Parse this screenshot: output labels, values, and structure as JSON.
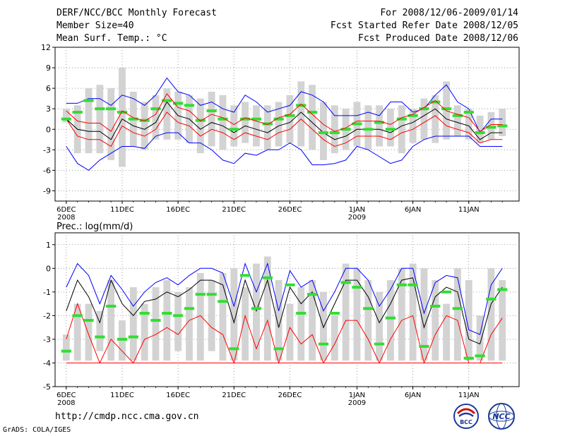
{
  "header": {
    "title": "DERF/NCC/BCC Monthly Forecast",
    "member_size": "Member Size=40",
    "variable": "Mean Surf. Temp.: °C",
    "period": "For 2008/12/06-2009/01/14",
    "started": "Fcst Started Refer Date 2008/12/05",
    "produced": "Fcst Produced Date 2008/12/06"
  },
  "footer": {
    "url": "http://cmdp.ncc.cma.gov.cn",
    "grads": "GrADS: COLA/IGES",
    "logo_bcc_text": "BCC",
    "logo_ncc_text": "NCC"
  },
  "colors": {
    "box": "#d3d3d3",
    "mean": "#000000",
    "upper": "#0000ff",
    "lower": "#ff0000",
    "marker": "#33dd33",
    "grid": "#888888"
  },
  "chart_data": [
    {
      "type": "box-ensemble",
      "title": "Mean Surf. Temp.: °C",
      "ylim": [
        -10.5,
        12
      ],
      "yticks": [
        12,
        9,
        6,
        3,
        0,
        -3,
        -6,
        -9
      ],
      "ytick_labels": [
        "12",
        "9",
        "6",
        "3",
        "0",
        "-3",
        "-6",
        "-9"
      ],
      "xlabels": [
        {
          "day": 0,
          "label": "6DEC",
          "sub": "2008"
        },
        {
          "day": 5,
          "label": "11DEC"
        },
        {
          "day": 10,
          "label": "16DEC"
        },
        {
          "day": 15,
          "label": "21DEC"
        },
        {
          "day": 20,
          "label": "26DEC"
        },
        {
          "day": 26,
          "label": "1JAN",
          "sub": "2009"
        },
        {
          "day": 31,
          "label": "6JAN"
        },
        {
          "day": 36,
          "label": "11JAN"
        }
      ],
      "box_low": [
        1.0,
        -3.5,
        -3.5,
        -3.5,
        -4.5,
        -5.5,
        -2.5,
        -3.0,
        -1.5,
        -1.5,
        -1.5,
        -2.0,
        -3.5,
        -2.5,
        -3.0,
        -2.5,
        -2.0,
        -2.5,
        -3.0,
        -2.5,
        -2.0,
        -2.5,
        -3.0,
        -4.5,
        -3.5,
        -3.0,
        -2.5,
        -3.0,
        -2.5,
        -2.5,
        -3.5,
        -2.0,
        -1.5,
        -2.0,
        -1.5,
        -1.0,
        -1.5,
        -2.0,
        -1.5,
        -1.0
      ],
      "box_high": [
        3.0,
        3.5,
        6.0,
        6.5,
        6.0,
        9.0,
        5.5,
        4.0,
        5.0,
        6.0,
        5.5,
        5.0,
        4.5,
        5.5,
        5.0,
        3.5,
        4.0,
        3.5,
        3.5,
        4.0,
        5.0,
        7.0,
        6.5,
        4.0,
        3.5,
        3.0,
        4.0,
        3.5,
        3.5,
        3.0,
        3.5,
        3.0,
        4.5,
        5.0,
        7.0,
        3.5,
        3.0,
        2.0,
        2.5,
        3.0
      ],
      "marker": [
        1.5,
        2.5,
        4.2,
        3.0,
        3.0,
        2.5,
        1.5,
        1.3,
        3.0,
        4.2,
        3.8,
        3.5,
        1.3,
        2.7,
        1.5,
        0.0,
        1.5,
        1.5,
        0.8,
        1.5,
        2.0,
        3.5,
        2.5,
        -0.5,
        -0.5,
        0.0,
        0.8,
        0.0,
        1.0,
        0.0,
        1.5,
        2.0,
        3.0,
        4.0,
        3.0,
        2.0,
        2.5,
        -0.5,
        0.3,
        0.5
      ],
      "mean": [
        1.5,
        0.0,
        -0.3,
        -0.3,
        -1.5,
        1.5,
        0.5,
        0.0,
        1.0,
        4.0,
        2.0,
        1.5,
        0.0,
        1.0,
        0.5,
        -0.5,
        0.5,
        0.0,
        -0.5,
        0.5,
        1.0,
        2.5,
        1.0,
        -0.5,
        -1.5,
        -1.0,
        0.0,
        0.0,
        0.0,
        -0.5,
        0.5,
        1.0,
        2.0,
        3.0,
        1.5,
        1.0,
        0.5,
        -1.5,
        -0.5,
        -0.5
      ],
      "upper": [
        3.8,
        3.8,
        4.5,
        4.5,
        3.5,
        5.0,
        4.5,
        3.5,
        5.0,
        7.5,
        5.5,
        5.0,
        3.5,
        4.0,
        3.0,
        2.5,
        5.0,
        4.0,
        2.5,
        3.0,
        3.5,
        5.5,
        5.0,
        4.0,
        2.0,
        2.0,
        2.0,
        2.5,
        2.0,
        4.0,
        4.0,
        2.5,
        3.0,
        5.0,
        6.5,
        4.0,
        3.0,
        -0.5,
        1.5,
        1.5
      ],
      "lower": [
        1.5,
        -1.0,
        -1.5,
        -1.5,
        -2.5,
        0.5,
        -0.5,
        -1.0,
        0.0,
        2.5,
        1.0,
        0.5,
        -1.0,
        0.0,
        -0.5,
        -1.5,
        -0.5,
        -1.0,
        -1.5,
        -0.5,
        0.0,
        1.5,
        0.0,
        -1.5,
        -2.5,
        -2.0,
        -1.0,
        -1.0,
        -1.0,
        -1.5,
        -0.5,
        0.0,
        1.0,
        2.0,
        0.5,
        0.0,
        -0.5,
        -2.0,
        -1.5,
        -1.5
      ],
      "lowest": [
        -2.5,
        -5.0,
        -6.0,
        -4.5,
        -3.5,
        -2.5,
        -2.5,
        -2.8,
        -1.0,
        -0.5,
        -0.5,
        -2.0,
        -2.0,
        -3.0,
        -4.5,
        -5.0,
        -3.5,
        -3.8,
        -3.0,
        -3.0,
        -2.0,
        -3.0,
        -5.2,
        -5.2,
        -5.0,
        -4.5,
        -2.5,
        -3.0,
        -4.0,
        -5.0,
        -4.5,
        -2.5,
        -1.5,
        -1.0,
        -1.0,
        -1.0,
        -1.0,
        -2.5,
        -2.5,
        -2.5
      ]
    },
    {
      "type": "box-ensemble",
      "title": "Prec.: log(mm/d)",
      "ylim": [
        -5,
        1.5
      ],
      "yticks": [
        1,
        0,
        -1,
        -2,
        -3,
        -4,
        -5
      ],
      "ytick_labels": [
        "1",
        "0",
        "-1",
        "-2",
        "-3",
        "-4",
        "-5"
      ],
      "xlabels": [
        {
          "day": 0,
          "label": "6DEC",
          "sub": "2008"
        },
        {
          "day": 5,
          "label": "11DEC"
        },
        {
          "day": 10,
          "label": "16DEC"
        },
        {
          "day": 15,
          "label": "21DEC"
        },
        {
          "day": 20,
          "label": "26DEC"
        },
        {
          "day": 26,
          "label": "1JAN",
          "sub": "2009"
        },
        {
          "day": 31,
          "label": "6JAN"
        },
        {
          "day": 36,
          "label": "11JAN"
        }
      ],
      "box_low": [
        -3.9,
        -3.9,
        -3.9,
        -3.5,
        -3.9,
        -3.9,
        -3.9,
        -3.9,
        -3.9,
        -3.9,
        -3.5,
        -3.9,
        -3.9,
        -3.5,
        -3.9,
        -3.9,
        -3.9,
        -3.9,
        -3.9,
        -3.9,
        -3.9,
        -3.9,
        -3.9,
        -3.9,
        -3.9,
        -3.9,
        -3.9,
        -3.9,
        -3.9,
        -3.9,
        -3.9,
        -3.9,
        -3.9,
        -3.9,
        -3.9,
        -3.9,
        -3.9,
        -3.9,
        -3.9,
        -3.9
      ],
      "box_high": [
        -2.8,
        -1.5,
        -1.5,
        -1.8,
        -0.5,
        -2.2,
        -0.8,
        -1.5,
        -0.8,
        -0.5,
        -1.0,
        -0.8,
        -0.2,
        -0.5,
        -0.2,
        0.0,
        -0.8,
        0.2,
        0.5,
        -0.5,
        -1.5,
        -0.8,
        -0.5,
        -1.0,
        -2.0,
        0.2,
        0.0,
        -0.5,
        -1.0,
        -0.5,
        0.0,
        0.2,
        0.0,
        -0.5,
        -1.5,
        0.0,
        -0.5,
        -2.0,
        0.0,
        -0.5
      ],
      "marker": [
        -3.5,
        -2.0,
        -2.2,
        -2.9,
        -1.6,
        -3.0,
        -2.9,
        -1.9,
        -2.2,
        -1.9,
        -2.0,
        -1.7,
        -1.1,
        -1.1,
        -1.4,
        -3.4,
        -0.3,
        -1.7,
        -0.4,
        -3.4,
        -0.7,
        -1.9,
        -1.1,
        -3.2,
        -1.9,
        -0.6,
        -0.8,
        -1.7,
        -3.2,
        -2.1,
        -0.7,
        -0.7,
        -3.3,
        -1.6,
        -1.0,
        -1.7,
        -3.8,
        -3.7,
        -1.3,
        -0.9
      ],
      "mean": [
        -1.8,
        -0.5,
        -1.2,
        -2.3,
        -0.5,
        -1.5,
        -2.0,
        -1.4,
        -1.3,
        -1.0,
        -1.2,
        -0.9,
        -0.5,
        -0.5,
        -0.7,
        -2.3,
        -0.5,
        -1.8,
        -0.5,
        -2.5,
        -0.8,
        -1.5,
        -1.0,
        -2.5,
        -1.5,
        -0.5,
        -0.5,
        -1.2,
        -2.3,
        -1.5,
        -0.5,
        -0.4,
        -2.5,
        -1.2,
        -0.8,
        -1.0,
        -3.0,
        -3.2,
        -1.5,
        -0.8
      ],
      "upper": [
        -0.8,
        0.2,
        -0.3,
        -1.5,
        -0.3,
        -0.9,
        -1.6,
        -1.0,
        -0.6,
        -0.4,
        -0.7,
        -0.3,
        0.0,
        0.0,
        -0.2,
        -1.6,
        0.2,
        -1.0,
        0.2,
        -1.8,
        -0.1,
        -0.8,
        -0.5,
        -1.8,
        -1.0,
        0.0,
        0.0,
        -0.5,
        -1.6,
        -0.9,
        0.0,
        0.0,
        -1.9,
        -0.6,
        -0.3,
        -0.4,
        -2.6,
        -2.8,
        -0.7,
        0.0
      ],
      "lower": [
        -3.0,
        -1.5,
        -2.8,
        -4.0,
        -3.0,
        -3.5,
        -4.0,
        -3.0,
        -2.8,
        -2.5,
        -2.8,
        -2.2,
        -2.0,
        -2.5,
        -2.8,
        -4.0,
        -2.0,
        -3.4,
        -2.2,
        -4.0,
        -2.5,
        -3.2,
        -2.8,
        -4.0,
        -3.2,
        -2.2,
        -2.2,
        -3.0,
        -4.0,
        -3.0,
        -2.2,
        -2.0,
        -4.0,
        -2.8,
        -2.0,
        -2.2,
        -4.0,
        -4.0,
        -2.8,
        -2.1
      ],
      "lowest": [
        -4,
        -4,
        -4,
        -4,
        -4,
        -4,
        -4,
        -4,
        -4,
        -4,
        -4,
        -4,
        -4,
        -4,
        -4,
        -4,
        -4,
        -4,
        -4,
        -4,
        -4,
        -4,
        -4,
        -4,
        -4,
        -4,
        -4,
        -4,
        -4,
        -4,
        -4,
        -4,
        -4,
        -4,
        -4,
        -4,
        -4,
        -4,
        -4,
        -4
      ]
    }
  ]
}
